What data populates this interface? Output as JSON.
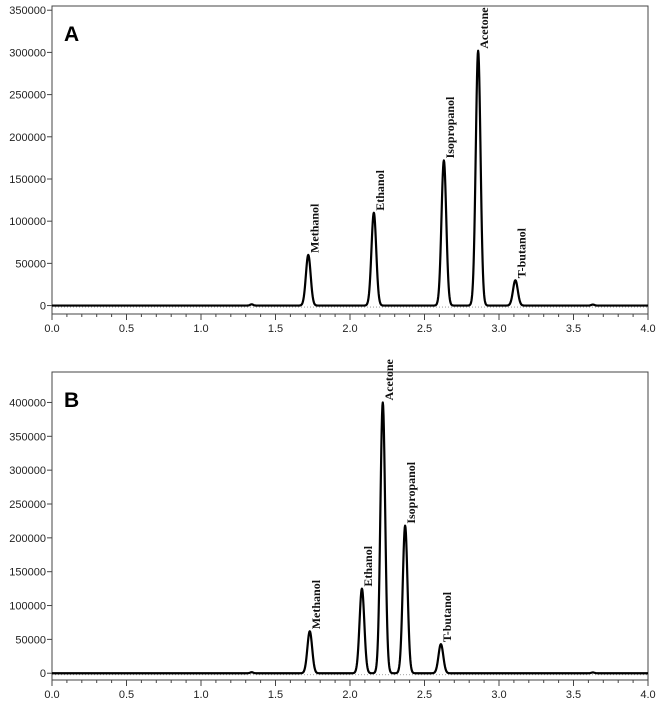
{
  "chart_data": [
    {
      "type": "line",
      "panel_label": "A",
      "title": "",
      "xlabel": "",
      "ylabel": "",
      "xlim": [
        0.0,
        4.0
      ],
      "ylim": [
        -10000,
        355000
      ],
      "x_ticks": [
        "0.0",
        "0.5",
        "1.0",
        "1.5",
        "2.0",
        "2.5",
        "3.0",
        "3.5",
        "4.0"
      ],
      "y_ticks": [
        "0",
        "50000",
        "100000",
        "150000",
        "200000",
        "250000",
        "300000",
        "350000"
      ],
      "grid": false,
      "baseline": 0,
      "peaks": [
        {
          "label": "Methanol",
          "x": 1.72,
          "y": 60000
        },
        {
          "label": "Ethanol",
          "x": 2.16,
          "y": 110000
        },
        {
          "label": "Isopropanol",
          "x": 2.63,
          "y": 172000
        },
        {
          "label": "Acetone",
          "x": 2.86,
          "y": 302000
        },
        {
          "label": "T-butanol",
          "x": 3.11,
          "y": 30000
        }
      ]
    },
    {
      "type": "line",
      "panel_label": "B",
      "title": "",
      "xlabel": "",
      "ylabel": "",
      "xlim": [
        0.0,
        4.0
      ],
      "ylim": [
        -10000,
        445000
      ],
      "x_ticks": [
        "0.0",
        "0.5",
        "1.0",
        "1.5",
        "2.0",
        "2.5",
        "3.0",
        "3.5",
        "4.0"
      ],
      "y_ticks": [
        "0",
        "50000",
        "100000",
        "150000",
        "200000",
        "250000",
        "300000",
        "350000",
        "400000"
      ],
      "grid": false,
      "baseline": 0,
      "peaks": [
        {
          "label": "Methanol",
          "x": 1.73,
          "y": 62000
        },
        {
          "label": "Ethanol",
          "x": 2.08,
          "y": 125000
        },
        {
          "label": "Acetone",
          "x": 2.22,
          "y": 400000
        },
        {
          "label": "Isopropanol",
          "x": 2.37,
          "y": 218000
        },
        {
          "label": "T-butanol",
          "x": 2.61,
          "y": 43000
        }
      ]
    }
  ]
}
